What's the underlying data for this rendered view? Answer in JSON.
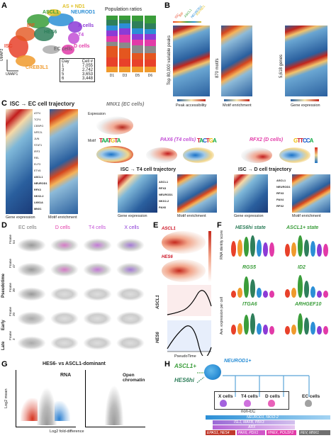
{
  "panels": {
    "A": {
      "letter": "A",
      "clusters": [
        "ASCL1",
        "HES6",
        "IRF",
        "ISC",
        "CREB3L1",
        "EC cells",
        "NEUROD1",
        "X cells",
        "T4",
        "D cells",
        "AS + ND1"
      ],
      "umap1": "UMAP1",
      "umap2": "UMAP2",
      "table_header": [
        "Day",
        "Cell #"
      ],
      "table_rows": [
        [
          "1",
          "7,055"
        ],
        [
          "3",
          "2,742"
        ],
        [
          "5",
          "3,653"
        ],
        [
          "6",
          "3,448"
        ]
      ],
      "ratio_title": "Population ratios",
      "ratio_x": [
        "D1",
        "D3",
        "D5",
        "D6"
      ]
    },
    "B": {
      "letter": "B",
      "ylabel": "Top 80,000 variable peaks",
      "motifs": "870 motifs",
      "genes": "5,618 genes",
      "col1": "Peak accessibility",
      "col2": "Motif enrichment",
      "col3": "Gene expression"
    },
    "C": {
      "letter": "C",
      "title_ec": "ISC → EC cell trajectory",
      "mnx1": "MNX1 (EC cells)",
      "expression": "Expression",
      "motif": "Motif",
      "pax6": "PAX6 (T4 cells)",
      "rfx2": "RFX2 (D cells)",
      "title_t4": "ISC → T4 cell trajectory",
      "title_d": "ISC → D cell trajectory",
      "gene_expr": "Gene expression",
      "motif_enr": "Motif enrichment",
      "left_genes": [
        "ATF4",
        "TCF4",
        "CEBPG",
        "NFE2L",
        "JUN",
        "STAT1",
        "IRF3",
        "REL",
        "ELF3",
        "ETV6",
        "ASCL1",
        "NEUROD1",
        "RFX3",
        "NKX2-2",
        "LMX1A",
        "MNX1"
      ],
      "t4_genes": [
        "ASCL1",
        "RFX3",
        "NEUROD1",
        "NKX2-2",
        "PAX6"
      ],
      "d_genes": [
        "ASCL1",
        "NEUROD1",
        "RFX3",
        "PAX4",
        "RFX2"
      ]
    },
    "D": {
      "letter": "D",
      "cols": [
        "EC cells",
        "D cells",
        "T4 cells",
        "X cells"
      ],
      "frames": [
        "Frame 54",
        "Frame 47",
        "Frame 30",
        "Frame 20",
        "Frame 3"
      ],
      "pseudotime": "Pseudotime",
      "early": "Early",
      "late": "Late"
    },
    "E": {
      "letter": "E",
      "ascl1": "ASCL1",
      "hes6": "HES6",
      "xlabel": "PseudoTime"
    },
    "F": {
      "letter": "F",
      "hes6_state": "HES6hi state",
      "ascl1_state": "ASCL1+ state",
      "ylabel1": "RNA identity score",
      "ylabel2": "Ave. expression per cell",
      "genes": [
        "RGS5",
        "ID2",
        "ITGA6",
        "ARHGEF10"
      ]
    },
    "G": {
      "letter": "G",
      "title": "HES6- vs ASCL1-dominant",
      "rna": "RNA",
      "chromatin": "Open chromatin",
      "xlabel": "Log2 fold-difference",
      "ylabel": "Log2 mean"
    },
    "H": {
      "letter": "H",
      "ascl1": "ASCL1+",
      "neurod1": "NEUROD1+",
      "hes6": "HES6hi",
      "targets": [
        "X cells",
        "T4 cells",
        "D cells",
        "EC cells"
      ],
      "nonec": "non-EC",
      "bar1": "NEUROD1, NKX2-2",
      "bar2": "ISL1, MAFB, PBX3",
      "bar3": "ARX",
      "bar4a": "EPAS1, HES4",
      "bar4b": "PAX6, PDX1",
      "bar4c": "HHEX, POU2F2",
      "bar4d": "FEV, MNX1"
    }
  },
  "colors": {
    "ISC": "#e8412a",
    "IRF": "#e4561f",
    "CREB3L1": "#f09a2c",
    "ASCL1": "#3a9d3a",
    "HES6": "#2f7f5b",
    "NEUROD1": "#2c8fd6",
    "Xcells": "#8c3bd6",
    "T4": "#c34fd6",
    "Dcells": "#e23aa8",
    "EC": "#8a8a8a",
    "ASND1": "#e0c128"
  }
}
